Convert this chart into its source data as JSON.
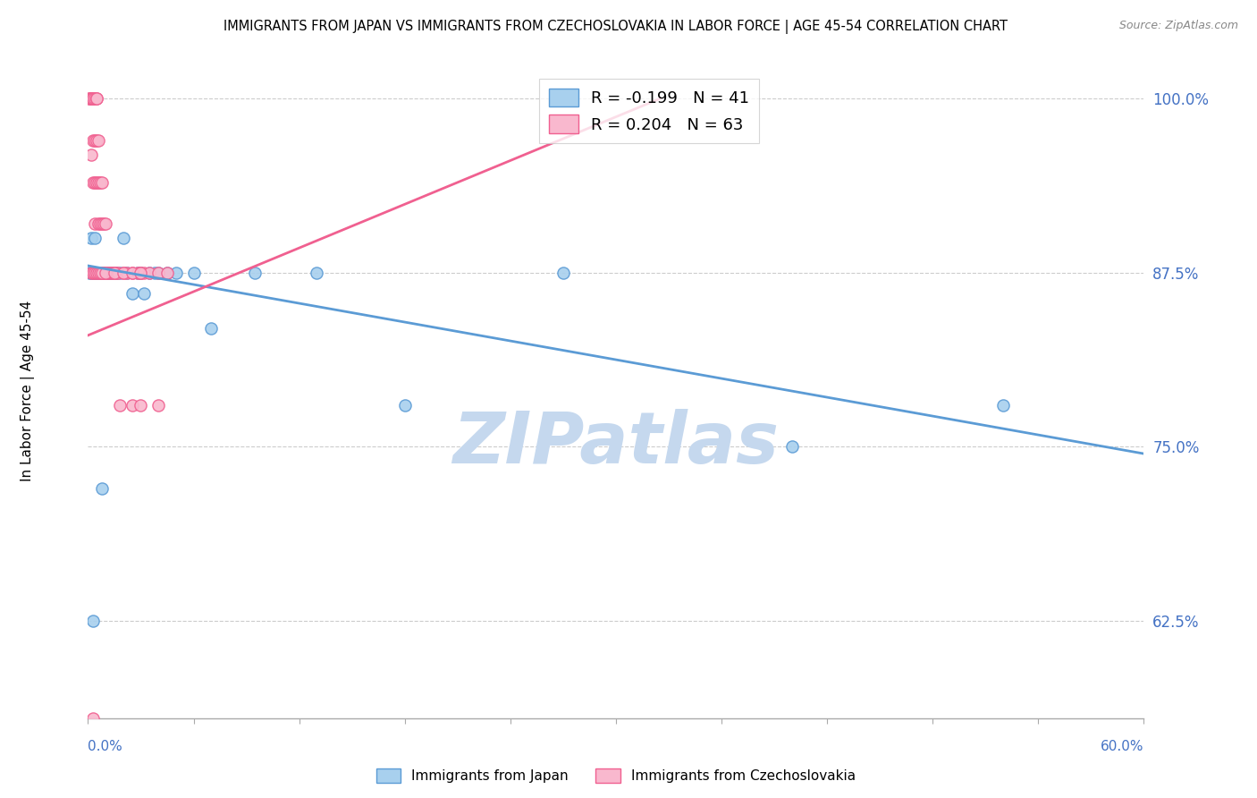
{
  "title": "IMMIGRANTS FROM JAPAN VS IMMIGRANTS FROM CZECHOSLOVAKIA IN LABOR FORCE | AGE 45-54 CORRELATION CHART",
  "source": "Source: ZipAtlas.com",
  "ylabel": "In Labor Force | Age 45-54",
  "xlim": [
    0.0,
    0.6
  ],
  "ylim": [
    0.555,
    1.025
  ],
  "ytick_vals": [
    0.625,
    0.75,
    0.875,
    1.0
  ],
  "ytick_labels": [
    "62.5%",
    "75.0%",
    "87.5%",
    "100.0%"
  ],
  "color_japan_fill": "#A8D0EE",
  "color_japan_edge": "#5B9BD5",
  "color_czech_fill": "#F9B8CE",
  "color_czech_edge": "#F06090",
  "color_japan_line": "#5B9BD5",
  "color_czech_line": "#F06090",
  "watermark": "ZIPatlas",
  "watermark_color": "#C5D8EE",
  "legend_japan": "R = -0.199   N = 41",
  "legend_czech": "R = 0.204   N = 63",
  "japan_x": [
    0.001,
    0.002,
    0.002,
    0.003,
    0.003,
    0.004,
    0.004,
    0.005,
    0.005,
    0.006,
    0.007,
    0.008,
    0.009,
    0.01,
    0.011,
    0.012,
    0.013,
    0.015,
    0.016,
    0.018,
    0.02,
    0.022,
    0.025,
    0.028,
    0.03,
    0.032,
    0.035,
    0.038,
    0.04,
    0.045,
    0.05,
    0.06,
    0.07,
    0.095,
    0.13,
    0.18,
    0.27,
    0.4,
    0.52,
    0.003,
    0.008
  ],
  "japan_y": [
    0.875,
    0.875,
    0.9,
    0.875,
    0.875,
    0.875,
    0.9,
    0.875,
    0.875,
    0.875,
    0.875,
    0.875,
    0.875,
    0.875,
    0.875,
    0.875,
    0.875,
    0.875,
    0.875,
    0.875,
    0.9,
    0.875,
    0.86,
    0.875,
    0.875,
    0.86,
    0.875,
    0.875,
    0.875,
    0.875,
    0.875,
    0.875,
    0.835,
    0.875,
    0.875,
    0.78,
    0.875,
    0.75,
    0.78,
    0.625,
    0.72
  ],
  "czech_x": [
    0.001,
    0.001,
    0.002,
    0.002,
    0.002,
    0.003,
    0.003,
    0.003,
    0.003,
    0.004,
    0.004,
    0.004,
    0.004,
    0.005,
    0.005,
    0.005,
    0.005,
    0.006,
    0.006,
    0.006,
    0.007,
    0.007,
    0.007,
    0.008,
    0.008,
    0.008,
    0.009,
    0.009,
    0.01,
    0.01,
    0.011,
    0.012,
    0.013,
    0.014,
    0.015,
    0.016,
    0.017,
    0.018,
    0.02,
    0.022,
    0.025,
    0.025,
    0.028,
    0.03,
    0.03,
    0.032,
    0.035,
    0.04,
    0.04,
    0.045,
    0.002,
    0.003,
    0.004,
    0.005,
    0.006,
    0.007,
    0.008,
    0.01,
    0.015,
    0.02,
    0.025,
    0.03,
    0.003
  ],
  "czech_y": [
    1.0,
    1.0,
    1.0,
    1.0,
    0.96,
    1.0,
    1.0,
    0.97,
    0.94,
    1.0,
    0.97,
    0.94,
    0.91,
    1.0,
    1.0,
    0.97,
    0.94,
    0.97,
    0.94,
    0.91,
    0.94,
    0.91,
    0.875,
    0.94,
    0.91,
    0.875,
    0.91,
    0.875,
    0.91,
    0.875,
    0.875,
    0.875,
    0.875,
    0.875,
    0.875,
    0.875,
    0.875,
    0.78,
    0.875,
    0.875,
    0.875,
    0.78,
    0.875,
    0.875,
    0.78,
    0.875,
    0.875,
    0.875,
    0.78,
    0.875,
    0.875,
    0.875,
    0.875,
    0.875,
    0.875,
    0.875,
    0.875,
    0.875,
    0.875,
    0.875,
    0.875,
    0.875,
    0.555
  ],
  "japan_trend_x": [
    0.0,
    0.6
  ],
  "japan_trend_y": [
    0.88,
    0.745
  ],
  "czech_trend_x": [
    0.0,
    0.325
  ],
  "czech_trend_y": [
    0.83,
    1.0
  ]
}
